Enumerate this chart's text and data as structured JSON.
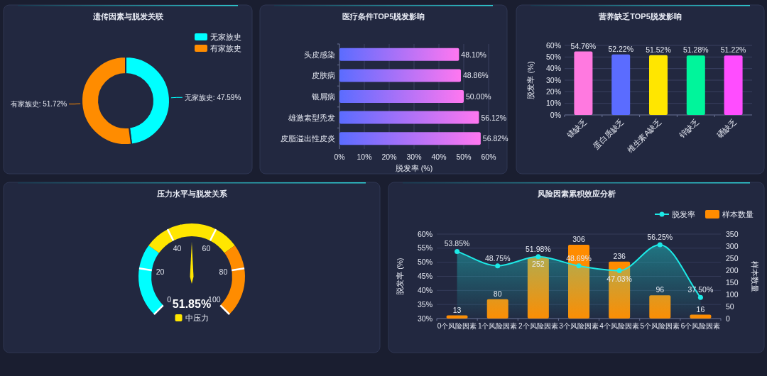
{
  "chart_data": [
    {
      "type": "donut",
      "title": "遗传因素与脱发关联",
      "categories": [
        "无家族史",
        "有家族史"
      ],
      "values": [
        47.59,
        51.72
      ],
      "colors": [
        "#00ffff",
        "#ff8c00"
      ],
      "value_labels": [
        "无家族史: 47.59%",
        "有家族史: 51.72%"
      ],
      "legend": "top right"
    },
    {
      "type": "bar",
      "orientation": "horizontal",
      "title": "医疗条件TOP5脱发影响",
      "categories": [
        "头皮感染",
        "皮肤病",
        "银屑病",
        "雄激素型秃发",
        "皮脂溢出性皮炎"
      ],
      "values": [
        48.1,
        48.86,
        50.0,
        56.12,
        56.82
      ],
      "value_labels": [
        "48.10%",
        "48.86%",
        "50.00%",
        "56.12%",
        "56.82%"
      ],
      "color": "#ff77f0",
      "xlabel": "脱发率 (%)",
      "xlim": [
        0,
        60
      ],
      "xticks": [
        {
          "value": 0,
          "label": "0%"
        },
        {
          "value": 10,
          "label": "10%"
        },
        {
          "value": 20,
          "label": "20%"
        },
        {
          "value": 30,
          "label": "30%"
        },
        {
          "value": 40,
          "label": "40%"
        },
        {
          "value": 50,
          "label": "50%"
        },
        {
          "value": 60,
          "label": "60%"
        }
      ],
      "grid": "x"
    },
    {
      "type": "bar",
      "title": "营养缺乏TOP5脱发影响",
      "categories": [
        "镁缺乏",
        "蛋白质缺乏",
        "维生素A缺乏",
        "锌缺乏",
        "硒缺乏"
      ],
      "values": [
        54.76,
        52.22,
        51.52,
        51.28,
        51.22
      ],
      "value_labels": [
        "54.76%",
        "52.22%",
        "51.52%",
        "51.28%",
        "51.22%"
      ],
      "colors": [
        "#ff79e0",
        "#5b6cff",
        "#ffe600",
        "#00f59b",
        "#ff4dff"
      ],
      "ylabel": "脱发率 (%)",
      "ylim": [
        0,
        60
      ],
      "yticks": [
        {
          "value": 0,
          "label": "0%"
        },
        {
          "value": 10,
          "label": "10%"
        },
        {
          "value": 20,
          "label": "20%"
        },
        {
          "value": 30,
          "label": "30%"
        },
        {
          "value": 40,
          "label": "40%"
        },
        {
          "value": 50,
          "label": "50%"
        },
        {
          "value": 60,
          "label": "60%"
        }
      ],
      "grid": "y"
    },
    {
      "type": "donut",
      "title": "压力水平与脱发关系",
      "categories": [
        null,
        "中压力",
        null
      ],
      "values": [
        30,
        40,
        30
      ],
      "colors": [
        "#00ffff",
        "#ffe600",
        "#ff8c00"
      ],
      "needle": "中压力",
      "annotations": [
        "51.85%",
        "0",
        "20",
        "40",
        "60",
        "80",
        "100"
      ]
    },
    {
      "type": "bar",
      "title": "风险因素累积效应分析",
      "categories": [
        "0个风险因素",
        "1个风险因素",
        "2个风险因素",
        "3个风险因素",
        "4个风险因素",
        "5个风险因素",
        "6个风险因素"
      ],
      "ylabel": "脱发率 (%)",
      "y2label": "样本数量",
      "ylim": [
        30,
        60
      ],
      "yticks": [
        {
          "value": 30,
          "label": "30%"
        },
        {
          "value": 35,
          "label": "35%"
        },
        {
          "value": 40,
          "label": "40%"
        },
        {
          "value": 45,
          "label": "45%"
        },
        {
          "value": 50,
          "label": "50%"
        },
        {
          "value": 55,
          "label": "55%"
        },
        {
          "value": 60,
          "label": "60%"
        }
      ],
      "y2lim": [
        0,
        350
      ],
      "y2ticks": [
        0,
        50,
        100,
        150,
        200,
        250,
        300,
        350
      ],
      "grid": "y",
      "legend": "top right",
      "marker": "circle",
      "series": [
        {
          "name": "脱发率",
          "type": "area",
          "color": "#1de9e6",
          "values": [
            53.85,
            48.75,
            51.98,
            48.69,
            47.03,
            56.25,
            37.5
          ],
          "value_labels": [
            "53.85%",
            "48.75%",
            "51.98%",
            "48.69%",
            "47.03%",
            "56.25%",
            "37.50%"
          ]
        },
        {
          "name": "样本数量",
          "type": "bar",
          "axis": "y2",
          "color": "#ff8c00",
          "values": [
            13,
            80,
            252,
            306,
            236,
            96,
            16
          ],
          "value_labels": [
            "13",
            "80",
            "252",
            "306",
            "236",
            "96",
            "16"
          ]
        }
      ]
    }
  ]
}
